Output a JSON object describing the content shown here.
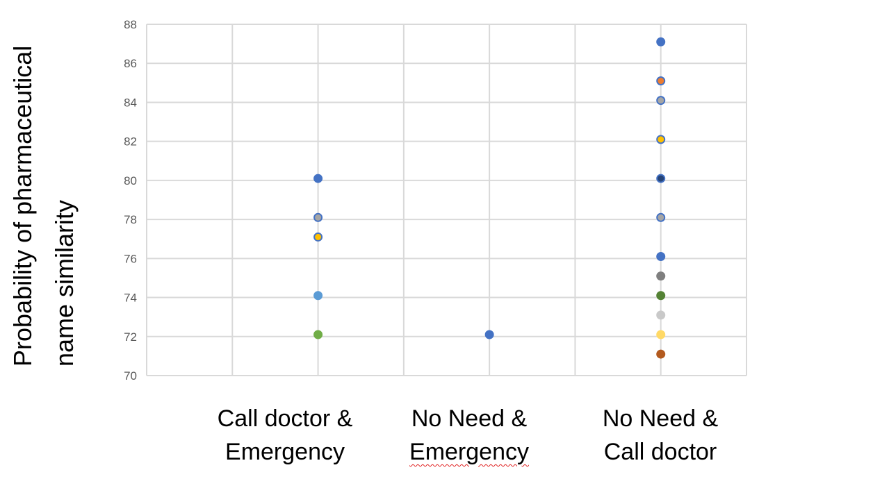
{
  "chart_data": {
    "type": "scatter",
    "title": "",
    "ylabel_lines": [
      "Probability of pharmaceutical",
      "name similarity"
    ],
    "ylim": [
      70,
      88
    ],
    "yticks": [
      "70",
      "72",
      "74",
      "76",
      "78",
      "80",
      "82",
      "84",
      "86",
      "88"
    ],
    "grid": true,
    "legend": "none",
    "categories": [
      {
        "lines": [
          "Call doctor &",
          "Emergency"
        ],
        "x": 2
      },
      {
        "lines": [
          "No Need &",
          "Emergency"
        ],
        "x": 4
      },
      {
        "lines": [
          "No Need &",
          "Call doctor"
        ],
        "x": 6
      }
    ],
    "xlim": [
      0,
      7
    ],
    "points": [
      {
        "x": 2,
        "y": 80.1,
        "color": "#4472c4",
        "edge": "#4472c4"
      },
      {
        "x": 2,
        "y": 78.1,
        "color": "#a5a5a5",
        "edge": "#4472c4"
      },
      {
        "x": 2,
        "y": 77.1,
        "color": "#ffc000",
        "edge": "#4472c4"
      },
      {
        "x": 2,
        "y": 74.1,
        "color": "#5b9bd5",
        "edge": "#5b9bd5"
      },
      {
        "x": 2,
        "y": 72.1,
        "color": "#70ad47",
        "edge": "#70ad47"
      },
      {
        "x": 4,
        "y": 72.1,
        "color": "#4472c4",
        "edge": "#4472c4"
      },
      {
        "x": 6,
        "y": 87.1,
        "color": "#4472c4",
        "edge": "#4472c4"
      },
      {
        "x": 6,
        "y": 85.1,
        "color": "#ed7d31",
        "edge": "#4472c4"
      },
      {
        "x": 6,
        "y": 84.1,
        "color": "#a5a5a5",
        "edge": "#4472c4"
      },
      {
        "x": 6,
        "y": 82.1,
        "color": "#ffc000",
        "edge": "#4472c4"
      },
      {
        "x": 6,
        "y": 80.1,
        "color": "#264478",
        "edge": "#4472c4"
      },
      {
        "x": 6,
        "y": 78.1,
        "color": "#a5a5a5",
        "edge": "#4472c4"
      },
      {
        "x": 6,
        "y": 76.1,
        "color": "#4472c4",
        "edge": "#4472c4"
      },
      {
        "x": 6,
        "y": 75.1,
        "color": "#7f7f7f",
        "edge": "#7f7f7f"
      },
      {
        "x": 6,
        "y": 74.1,
        "color": "#548235",
        "edge": "#548235"
      },
      {
        "x": 6,
        "y": 73.1,
        "color": "#c9c9c9",
        "edge": "#c9c9c9"
      },
      {
        "x": 6,
        "y": 72.1,
        "color": "#ffd966",
        "edge": "#ffd966"
      },
      {
        "x": 6,
        "y": 71.1,
        "color": "#b35a1f",
        "edge": "#b35a1f"
      }
    ],
    "colors": {
      "grid": "#d9d9d9",
      "tick_text": "#595959"
    }
  }
}
